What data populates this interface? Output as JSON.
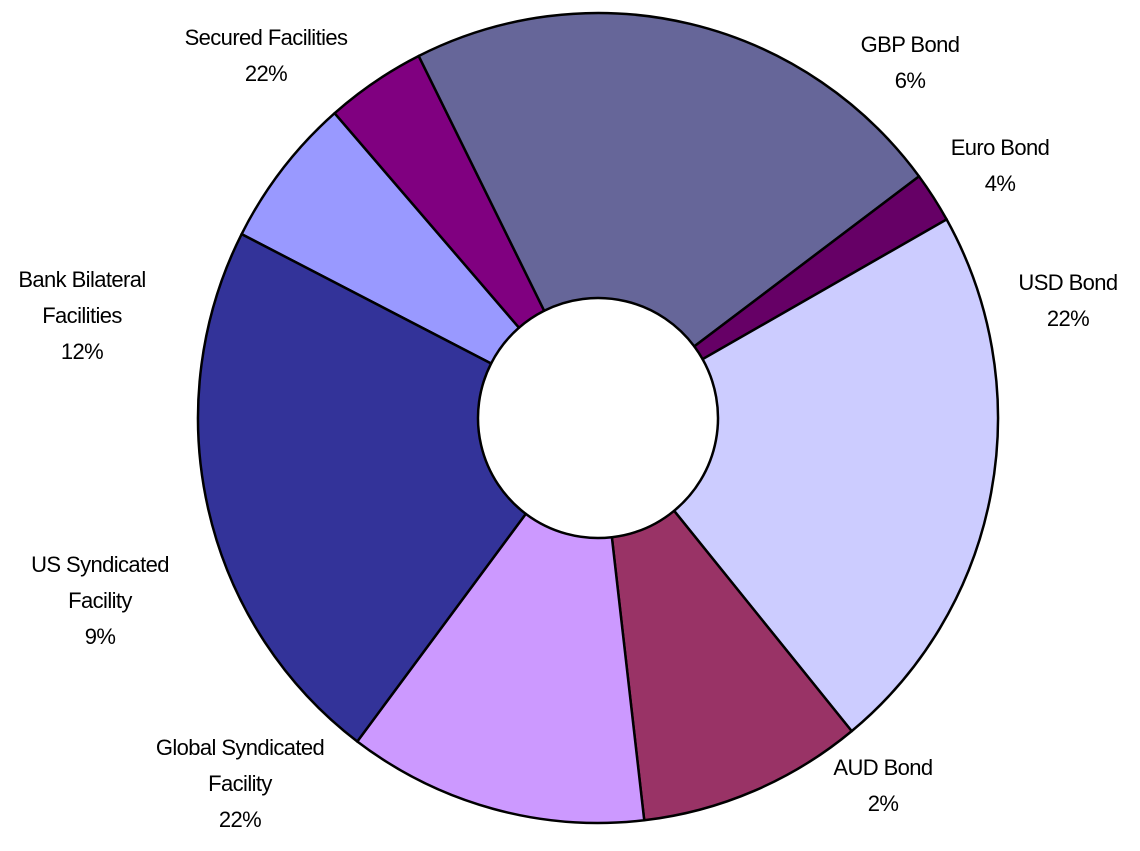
{
  "chart_data": {
    "type": "pie",
    "subtype": "doughnut",
    "title": "",
    "legend": "none",
    "slices": [
      {
        "name": "GBP Bond",
        "label_lines": [
          "GBP Bond"
        ],
        "percent_label": "6%",
        "value": 6,
        "color": "#9999FF"
      },
      {
        "name": "Euro Bond",
        "label_lines": [
          "Euro Bond"
        ],
        "percent_label": "4%",
        "value": 4,
        "color": "#800080"
      },
      {
        "name": "USD Bond",
        "label_lines": [
          "USD Bond"
        ],
        "percent_label": "22%",
        "value": 22,
        "color": "#666699"
      },
      {
        "name": "AUD Bond",
        "label_lines": [
          "AUD Bond"
        ],
        "percent_label": "2%",
        "value": 2,
        "color": "#660066"
      },
      {
        "name": "Global Syndicated Facility",
        "label_lines": [
          "Global Syndicated",
          "Facility"
        ],
        "percent_label": "22%",
        "value": 22,
        "color": "#CCCCFF"
      },
      {
        "name": "US Syndicated Facility",
        "label_lines": [
          "US Syndicated",
          "Facility"
        ],
        "percent_label": "9%",
        "value": 9,
        "color": "#993366"
      },
      {
        "name": "Bank Bilateral Facilities",
        "label_lines": [
          "Bank Bilateral",
          "Facilities"
        ],
        "percent_label": "12%",
        "value": 12,
        "color": "#CC99FF"
      },
      {
        "name": "Secured Facilities",
        "label_lines": [
          "Secured Facilities"
        ],
        "percent_label": "22%",
        "value": 22,
        "color": "#333399"
      }
    ]
  }
}
